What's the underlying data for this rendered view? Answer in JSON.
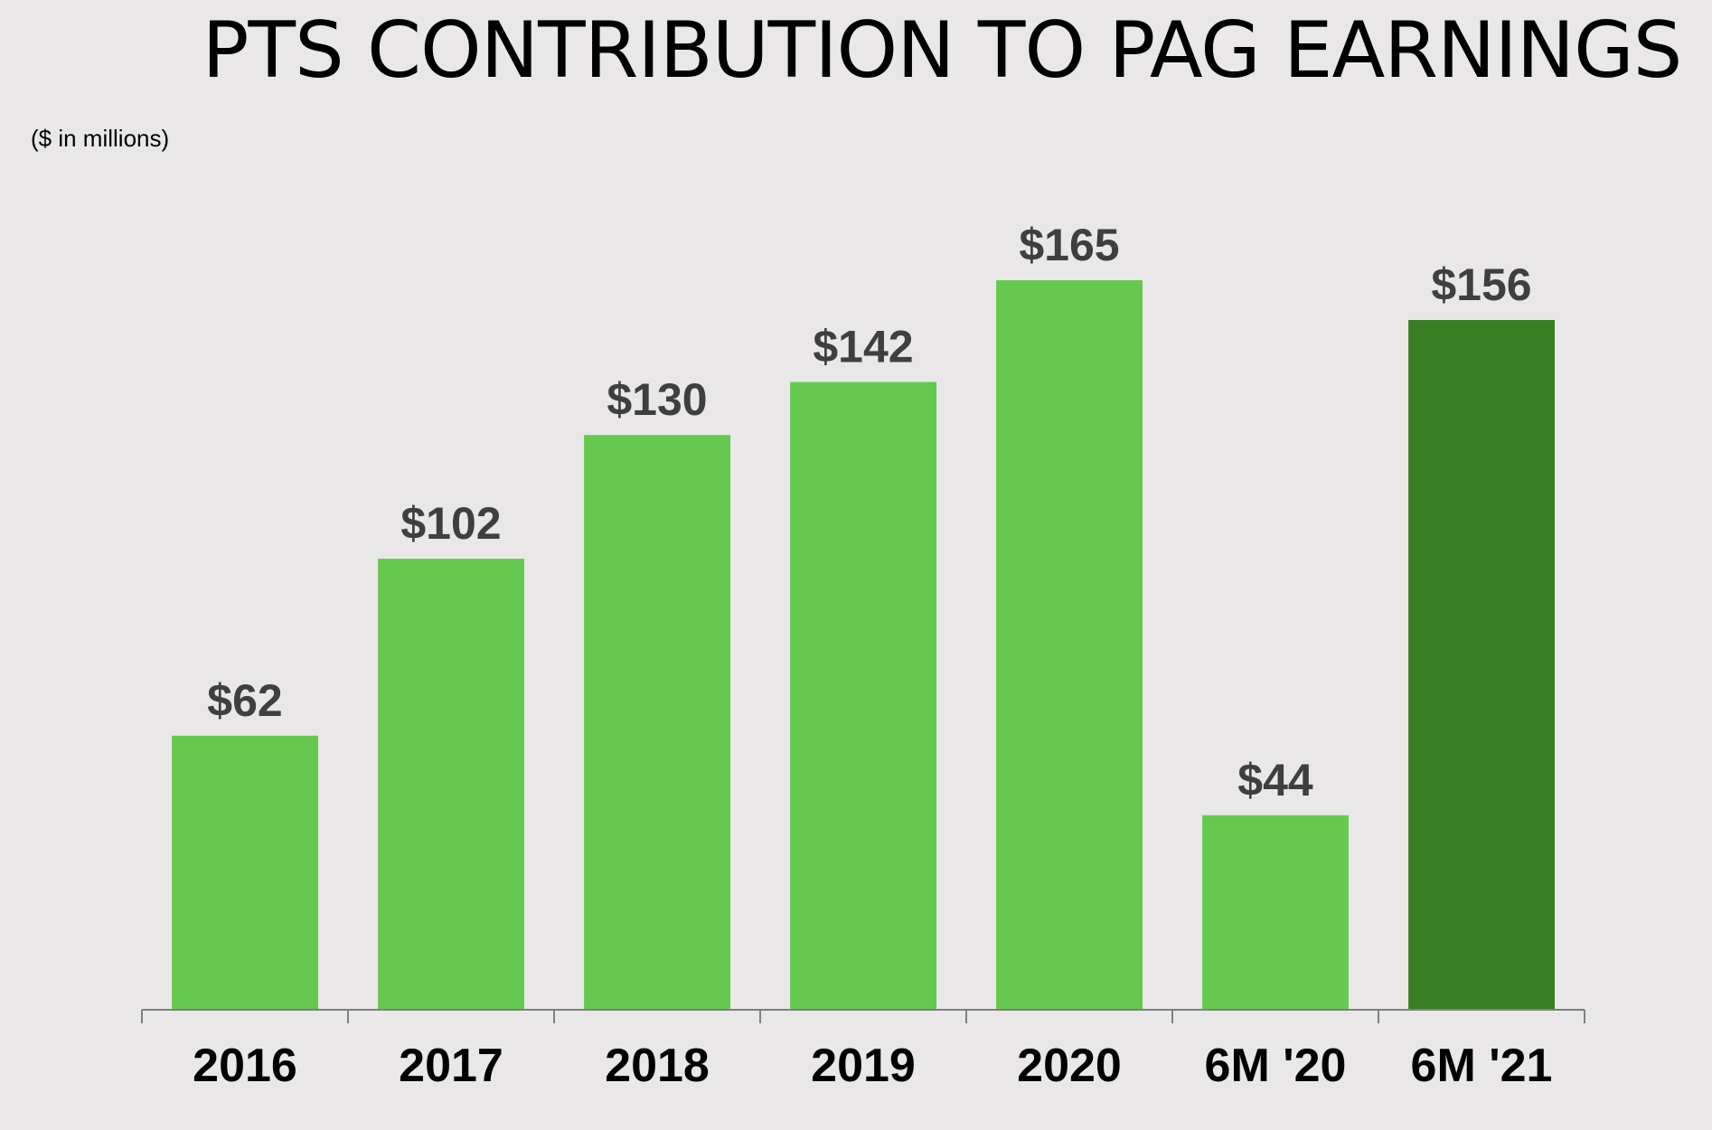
{
  "chart_data": {
    "type": "bar",
    "title": "PTS CONTRIBUTION TO PAG EARNINGS",
    "subtitle": "($ in millions)",
    "categories": [
      "2016",
      "2017",
      "2018",
      "2019",
      "2020",
      "6M '20",
      "6M '21"
    ],
    "values": [
      62,
      102,
      130,
      142,
      165,
      44,
      156
    ],
    "data_labels": [
      "$62",
      "$102",
      "$130",
      "$142",
      "$165",
      "$44",
      "$156"
    ],
    "highlight_category": "6M '21",
    "ylim": [
      0,
      165
    ],
    "grid": false,
    "legend": "none",
    "colors": {
      "bar": "#66c94f",
      "highlight_bar": "#377e22",
      "axis": "#808080",
      "data_label": "#3f3f3f",
      "background": "#e9e7e8"
    }
  }
}
